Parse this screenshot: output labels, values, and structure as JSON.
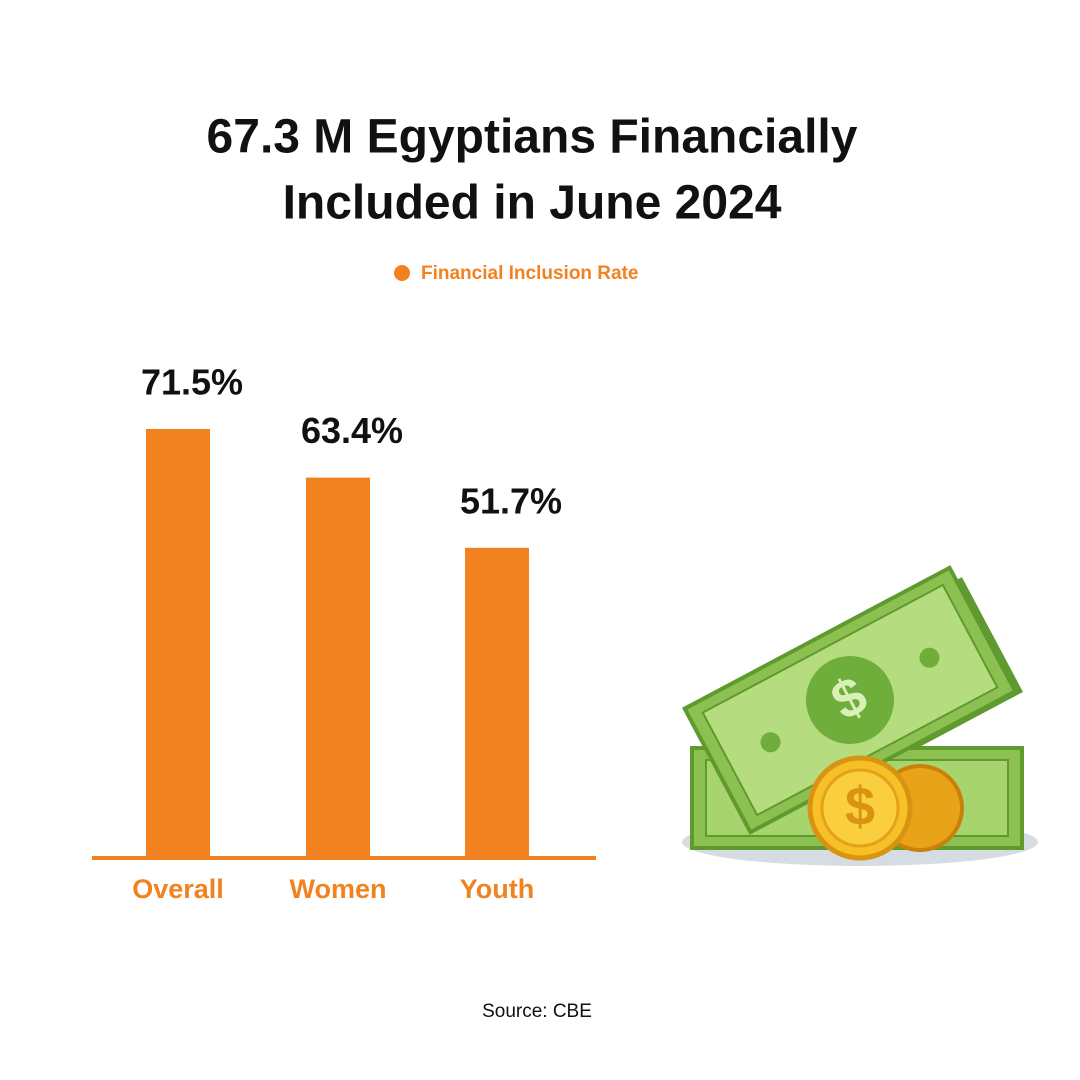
{
  "chart_data": {
    "type": "bar",
    "title": [
      "67.3 M Egyptians Financially",
      "Included in June 2024"
    ],
    "categories": [
      "Overall",
      "Women",
      "Youth"
    ],
    "series": [
      {
        "name": "Financial Inclusion Rate",
        "color": "#f28220",
        "values": [
          71.5,
          63.4,
          51.7
        ],
        "value_labels": [
          "71.5%",
          "63.4%",
          "51.7%"
        ]
      }
    ],
    "source": "Source: CBE"
  }
}
